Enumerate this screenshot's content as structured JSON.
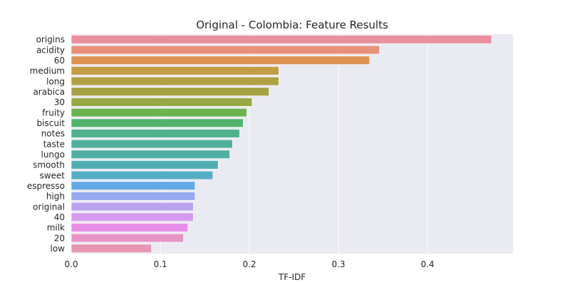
{
  "chart_data": {
    "type": "bar",
    "orientation": "horizontal",
    "title": "Original - Colombia: Feature Results",
    "xlabel": "TF-IDF",
    "ylabel": "",
    "xlim": [
      0.0,
      0.496
    ],
    "xticks": [
      "0.0",
      "0.1",
      "0.2",
      "0.3",
      "0.4"
    ],
    "grid": true,
    "categories": [
      "origins",
      "acidity",
      "60",
      "medium",
      "long",
      "arabica",
      "30",
      "fruity",
      "biscuit",
      "notes",
      "taste",
      "lungo",
      "smooth",
      "sweet",
      "espresso",
      "high",
      "original",
      "40",
      "milk",
      "20",
      "low"
    ],
    "values": [
      0.472,
      0.346,
      0.335,
      0.233,
      0.233,
      0.222,
      0.203,
      0.197,
      0.193,
      0.189,
      0.181,
      0.178,
      0.165,
      0.159,
      0.139,
      0.139,
      0.137,
      0.137,
      0.131,
      0.126,
      0.09
    ],
    "colors": [
      "#e8909e",
      "#e8907a",
      "#df9352",
      "#c39c45",
      "#b19f44",
      "#a6a244",
      "#96a944",
      "#6bb34f",
      "#52b36c",
      "#4fb28d",
      "#4fb19b",
      "#4fafa5",
      "#4fadb1",
      "#55aec6",
      "#64a9e6",
      "#96a9ee",
      "#b9a2ee",
      "#d69bed",
      "#e98ee6",
      "#e992c6",
      "#e895b4"
    ],
    "plot_bg": "#eaeaf2"
  }
}
